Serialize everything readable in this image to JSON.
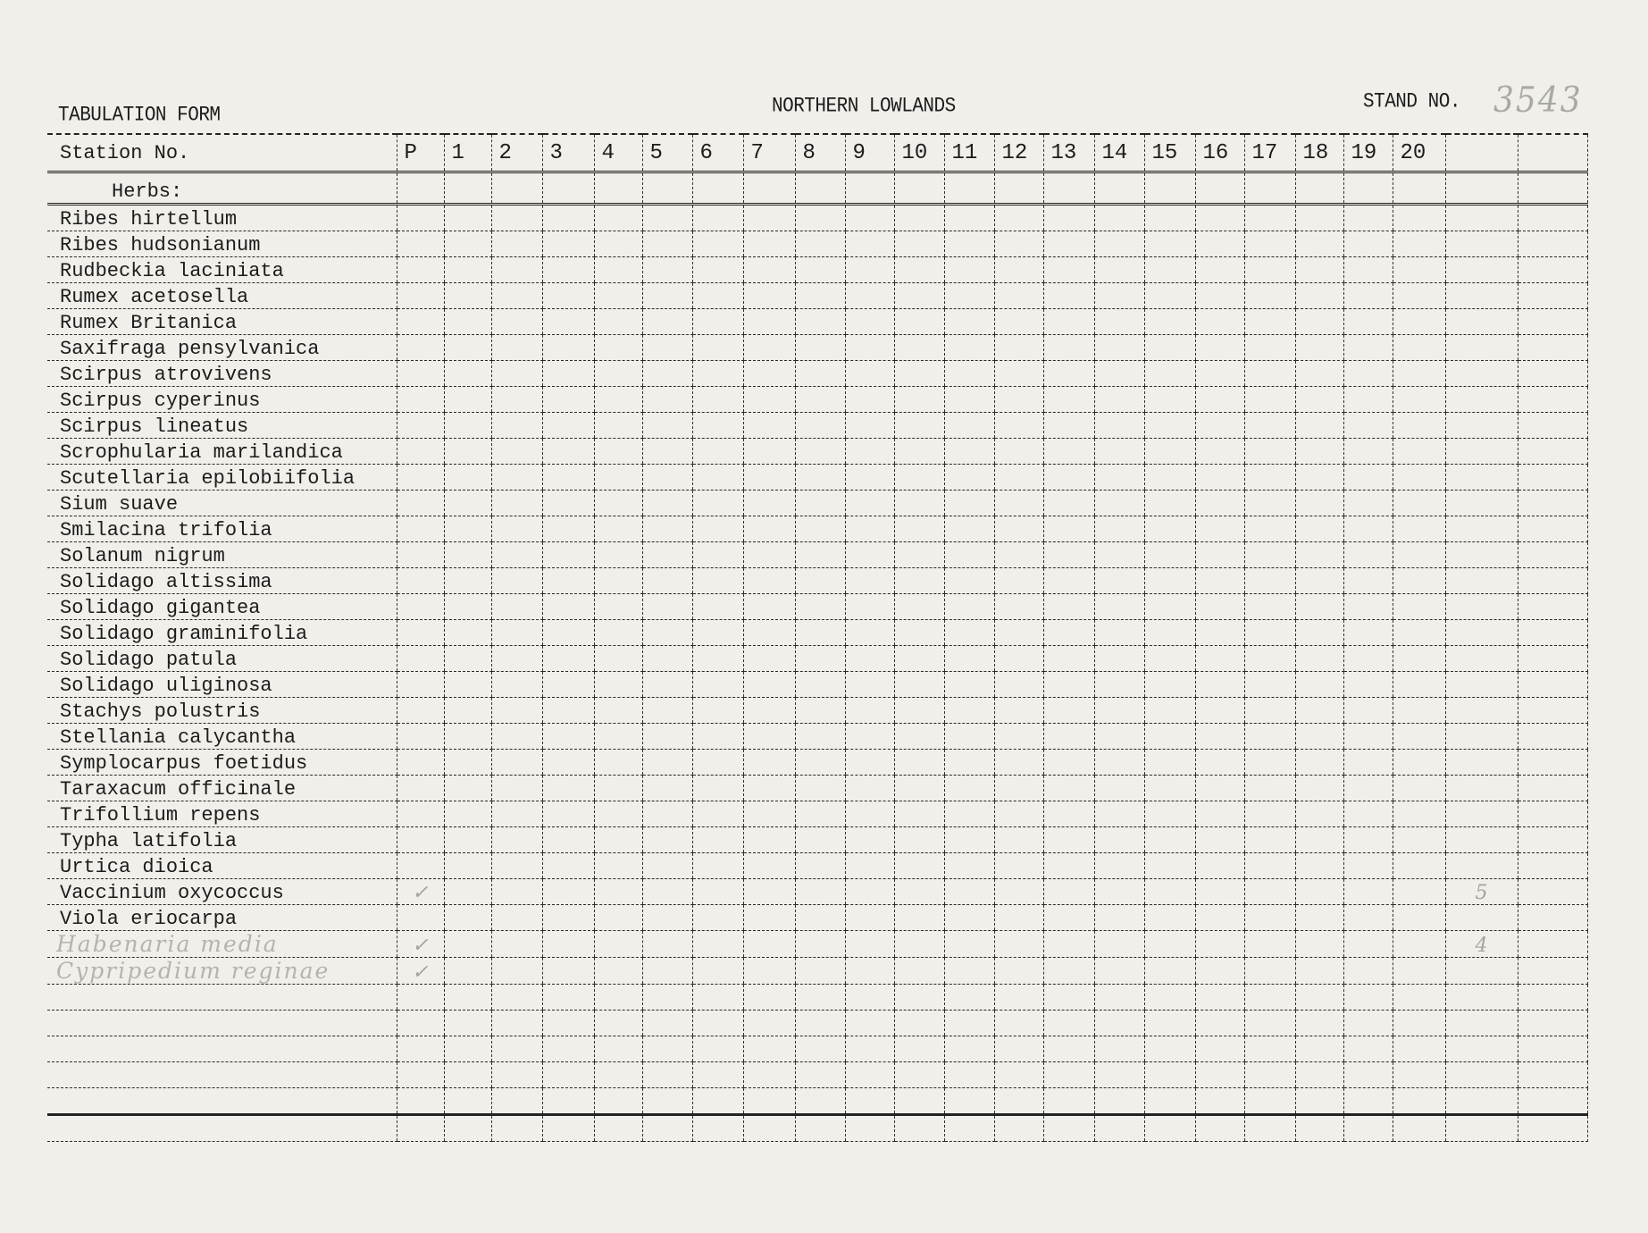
{
  "header": {
    "form_title": "TABULATION FORM",
    "region": "NORTHERN LOWLANDS",
    "stand_label": "STAND NO.",
    "stand_number": "3543"
  },
  "table": {
    "station_label": "Station No.",
    "columns": [
      "P",
      "1",
      "2",
      "3",
      "4",
      "5",
      "6",
      "7",
      "8",
      "9",
      "10",
      "11",
      "12",
      "13",
      "14",
      "15",
      "16",
      "17",
      "18",
      "19",
      "20",
      "",
      ""
    ],
    "section_label": "Herbs:",
    "rows": [
      {
        "name": "Ribes hirtellum"
      },
      {
        "name": "Ribes hudsonianum"
      },
      {
        "name": "Rudbeckia laciniata"
      },
      {
        "name": "Rumex acetosella"
      },
      {
        "name": "Rumex Britanica"
      },
      {
        "name": "Saxifraga pensylvanica"
      },
      {
        "name": "Scirpus atrovivens"
      },
      {
        "name": "Scirpus cyperinus"
      },
      {
        "name": "Scirpus lineatus"
      },
      {
        "name": "Scrophularia marilandica"
      },
      {
        "name": "Scutellaria epilobiifolia"
      },
      {
        "name": "Sium suave"
      },
      {
        "name": "Smilacina trifolia"
      },
      {
        "name": "Solanum nigrum"
      },
      {
        "name": "Solidago altissima"
      },
      {
        "name": "Solidago gigantea"
      },
      {
        "name": "Solidago graminifolia"
      },
      {
        "name": "Solidago patula"
      },
      {
        "name": "Solidago uliginosa"
      },
      {
        "name": "Stachys polustris"
      },
      {
        "name": "Stellania calycantha"
      },
      {
        "name": "Symplocarpus foetidus"
      },
      {
        "name": "Taraxacum officinale"
      },
      {
        "name": "Trifollium repens"
      },
      {
        "name": "Typha latifolia"
      },
      {
        "name": "Urtica dioica"
      },
      {
        "name": "Vaccinium oxycoccus",
        "marks": {
          "0": "✓",
          "21": "5"
        }
      },
      {
        "name": "Viola eriocarpa"
      },
      {
        "name": "Habenaria media",
        "handwritten": true,
        "marks": {
          "0": "✓",
          "21": "4"
        }
      },
      {
        "name": "Cypripedium reginae",
        "handwritten": true,
        "marks": {
          "0": "✓"
        }
      },
      {
        "name": ""
      },
      {
        "name": ""
      },
      {
        "name": ""
      },
      {
        "name": ""
      },
      {
        "name": ""
      },
      {
        "name": ""
      }
    ]
  }
}
